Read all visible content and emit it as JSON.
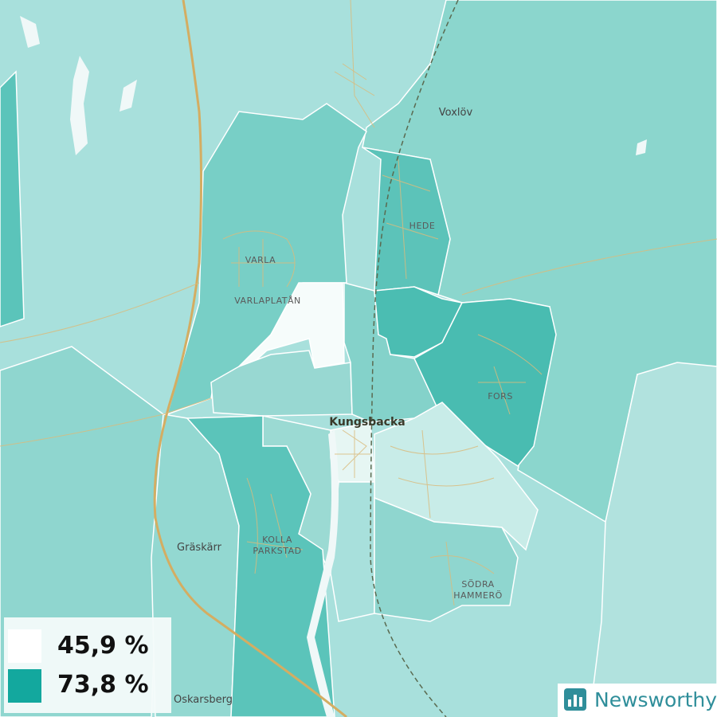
{
  "map": {
    "places": [
      {
        "lines": [
          "Voxlöv"
        ]
      },
      {
        "lines": [
          "HEDE"
        ]
      },
      {
        "lines": [
          "VARLA"
        ]
      },
      {
        "lines": [
          "VARLAPLATÅN"
        ]
      },
      {
        "lines": [
          "FORS"
        ]
      },
      {
        "lines": [
          "Kungsbacka"
        ]
      },
      {
        "lines": [
          "Gräskärr"
        ]
      },
      {
        "lines": [
          "KOLLA",
          "PARKSTAD"
        ]
      },
      {
        "lines": [
          "SÖDRA",
          "HAMMERÖ"
        ]
      },
      {
        "lines": [
          "Oskarsberg"
        ]
      }
    ]
  },
  "legend": [
    {
      "label": "45,9 %"
    },
    {
      "label": "73,8 %"
    }
  ],
  "brand": "Newsworthy"
}
